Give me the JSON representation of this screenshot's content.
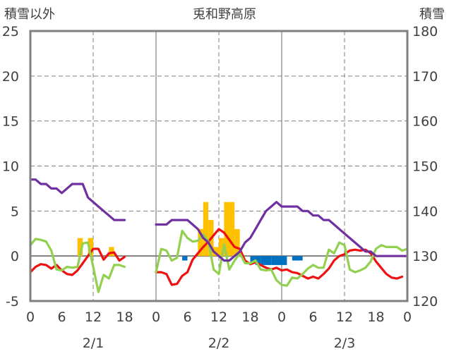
{
  "chart_data": {
    "type": "line",
    "title": "兎和野高原",
    "y_left_label": "積雪以外",
    "y_right_label": "積雪",
    "y_left_range": [
      -5,
      25
    ],
    "y_right_range": [
      120,
      180
    ],
    "y_left_ticks": [
      "-5",
      "0",
      "5",
      "10",
      "15",
      "20",
      "25"
    ],
    "y_right_ticks": [
      "120",
      "130",
      "140",
      "150",
      "160",
      "170",
      "180"
    ],
    "x_range_hours": [
      0,
      72
    ],
    "x_tick_labels": [
      "0",
      "6",
      "12",
      "18",
      "0",
      "6",
      "12",
      "18",
      "0",
      "6",
      "12",
      "18",
      "0"
    ],
    "date_labels": [
      "2/1",
      "2/2",
      "2/3"
    ],
    "grid": true,
    "colors": {
      "temperature": "#ee1111",
      "dewpoint": "#92d050",
      "snow_depth": "#7030a0",
      "precip_orange": "#ffc000",
      "precip_blue": "#0070c0",
      "grid": "#808080",
      "frame": "#808080"
    },
    "series": [
      {
        "color_key": "temperature",
        "axis": "left",
        "points": [
          [
            0,
            -1.8
          ],
          [
            1,
            -1.2
          ],
          [
            2,
            -0.9
          ],
          [
            3,
            -1.0
          ],
          [
            4,
            -1.4
          ],
          [
            5,
            -1.0
          ],
          [
            6,
            -1.6
          ],
          [
            7,
            -2.0
          ],
          [
            8,
            -2.1
          ],
          [
            9,
            -1.6
          ],
          [
            10,
            -0.8
          ],
          [
            11,
            0.0
          ],
          [
            12,
            0.8
          ],
          [
            13,
            0.8
          ],
          [
            14,
            -0.4
          ],
          [
            15,
            0.3
          ],
          [
            16,
            0.4
          ],
          [
            17,
            -0.5
          ],
          [
            18,
            -0.1
          ],
          [
            24,
            -1.8
          ],
          [
            25,
            -1.8
          ],
          [
            26,
            -2.0
          ],
          [
            27,
            -3.2
          ],
          [
            28,
            -3.1
          ],
          [
            29,
            -2.2
          ],
          [
            30,
            -1.8
          ],
          [
            31,
            -0.4
          ],
          [
            32,
            0.3
          ],
          [
            33,
            1.0
          ],
          [
            34,
            1.6
          ],
          [
            35,
            2.3
          ],
          [
            36,
            3.0
          ],
          [
            37,
            2.6
          ],
          [
            38,
            1.8
          ],
          [
            39,
            1.0
          ],
          [
            40,
            0.8
          ],
          [
            41,
            -0.5
          ],
          [
            42,
            -0.9
          ],
          [
            43,
            -0.7
          ],
          [
            44,
            -1.0
          ],
          [
            45,
            -1.3
          ],
          [
            46,
            -1.5
          ],
          [
            47,
            -1.3
          ],
          [
            48,
            -1.6
          ],
          [
            49,
            -1.5
          ],
          [
            50,
            -1.8
          ],
          [
            51,
            -1.9
          ],
          [
            52,
            -2.2
          ],
          [
            53,
            -2.5
          ],
          [
            54,
            -2.3
          ],
          [
            55,
            -2.5
          ],
          [
            56,
            -2.0
          ],
          [
            57,
            -1.4
          ],
          [
            58,
            -0.5
          ],
          [
            59,
            0.0
          ],
          [
            60,
            0.2
          ],
          [
            61,
            0.6
          ],
          [
            62,
            0.7
          ],
          [
            63,
            0.6
          ],
          [
            64,
            0.7
          ],
          [
            65,
            0.3
          ],
          [
            66,
            -0.6
          ],
          [
            67,
            -1.3
          ],
          [
            68,
            -2.0
          ],
          [
            69,
            -2.4
          ],
          [
            70,
            -2.5
          ],
          [
            71,
            -2.3
          ]
        ]
      },
      {
        "color_key": "dewpoint",
        "axis": "left",
        "points": [
          [
            0,
            1.2
          ],
          [
            1,
            1.9
          ],
          [
            2,
            1.8
          ],
          [
            3,
            1.6
          ],
          [
            4,
            0.6
          ],
          [
            5,
            -1.5
          ],
          [
            6,
            -1.6
          ],
          [
            7,
            -1.2
          ],
          [
            8,
            -1.3
          ],
          [
            9,
            -1.2
          ],
          [
            10,
            1.4
          ],
          [
            11,
            1.5
          ],
          [
            12,
            -1.2
          ],
          [
            13,
            -4.0
          ],
          [
            14,
            -2.1
          ],
          [
            15,
            -2.5
          ],
          [
            16,
            -1.0
          ],
          [
            17,
            -1.0
          ],
          [
            18,
            -1.2
          ],
          [
            24,
            -1.8
          ],
          [
            25,
            0.8
          ],
          [
            26,
            0.6
          ],
          [
            27,
            -0.5
          ],
          [
            28,
            -0.2
          ],
          [
            29,
            2.8
          ],
          [
            30,
            2.0
          ],
          [
            31,
            1.6
          ],
          [
            32,
            1.7
          ],
          [
            33,
            2.4
          ],
          [
            34,
            1.6
          ],
          [
            35,
            -1.5
          ],
          [
            36,
            -2.0
          ],
          [
            37,
            1.3
          ],
          [
            38,
            -1.5
          ],
          [
            39,
            -0.5
          ],
          [
            40,
            0.3
          ],
          [
            41,
            -0.8
          ],
          [
            42,
            -0.8
          ],
          [
            43,
            -0.5
          ],
          [
            44,
            -1.5
          ],
          [
            45,
            -1.6
          ],
          [
            46,
            -1.5
          ],
          [
            47,
            -2.7
          ],
          [
            48,
            -3.2
          ],
          [
            49,
            -3.3
          ],
          [
            50,
            -2.4
          ],
          [
            51,
            -2.5
          ],
          [
            52,
            -2.0
          ],
          [
            53,
            -1.4
          ],
          [
            54,
            -1.0
          ],
          [
            55,
            -1.3
          ],
          [
            56,
            -1.3
          ],
          [
            57,
            0.7
          ],
          [
            58,
            0.3
          ],
          [
            59,
            1.5
          ],
          [
            60,
            1.2
          ],
          [
            61,
            -1.5
          ],
          [
            62,
            -1.8
          ],
          [
            63,
            -1.6
          ],
          [
            64,
            -1.3
          ],
          [
            65,
            -0.6
          ],
          [
            66,
            0.8
          ],
          [
            67,
            1.2
          ],
          [
            68,
            1.0
          ],
          [
            69,
            1.0
          ],
          [
            70,
            1.0
          ],
          [
            71,
            0.6
          ],
          [
            72,
            0.8
          ]
        ]
      },
      {
        "color_key": "snow_depth",
        "axis": "right",
        "points": [
          [
            0,
            147
          ],
          [
            1,
            147
          ],
          [
            2,
            146
          ],
          [
            3,
            146
          ],
          [
            4,
            145
          ],
          [
            5,
            145
          ],
          [
            6,
            144
          ],
          [
            7,
            145
          ],
          [
            8,
            146
          ],
          [
            9,
            146
          ],
          [
            10,
            146
          ],
          [
            11,
            143
          ],
          [
            12,
            142
          ],
          [
            13,
            141
          ],
          [
            14,
            140
          ],
          [
            15,
            139
          ],
          [
            16,
            138
          ],
          [
            17,
            138
          ],
          [
            18,
            138
          ],
          [
            24,
            137
          ],
          [
            25,
            137
          ],
          [
            26,
            137
          ],
          [
            27,
            138
          ],
          [
            28,
            138
          ],
          [
            29,
            138
          ],
          [
            30,
            138
          ],
          [
            31,
            137
          ],
          [
            32,
            136
          ],
          [
            33,
            134
          ],
          [
            34,
            133
          ],
          [
            35,
            131
          ],
          [
            36,
            130
          ],
          [
            37,
            129
          ],
          [
            38,
            129
          ],
          [
            39,
            130
          ],
          [
            40,
            131
          ],
          [
            41,
            133
          ],
          [
            42,
            134
          ],
          [
            43,
            136
          ],
          [
            44,
            138
          ],
          [
            45,
            140
          ],
          [
            46,
            141
          ],
          [
            47,
            142
          ],
          [
            48,
            141
          ],
          [
            49,
            141
          ],
          [
            50,
            141
          ],
          [
            51,
            141
          ],
          [
            52,
            140
          ],
          [
            53,
            140
          ],
          [
            54,
            139
          ],
          [
            55,
            139
          ],
          [
            56,
            138
          ],
          [
            57,
            138
          ],
          [
            58,
            137
          ],
          [
            59,
            136
          ],
          [
            60,
            135
          ],
          [
            61,
            134
          ],
          [
            62,
            133
          ],
          [
            63,
            132
          ],
          [
            64,
            131
          ],
          [
            65,
            131
          ],
          [
            66,
            130
          ],
          [
            67,
            130
          ],
          [
            68,
            130
          ],
          [
            69,
            130
          ],
          [
            70,
            130
          ],
          [
            71,
            130
          ],
          [
            72,
            130
          ]
        ]
      }
    ],
    "bars": [
      {
        "color_key": "precip_orange",
        "start": 9,
        "end": 10,
        "value": 2.0
      },
      {
        "color_key": "precip_orange",
        "start": 11,
        "end": 12,
        "value": 2.0
      },
      {
        "color_key": "precip_orange",
        "start": 15,
        "end": 16,
        "value": 1.0
      },
      {
        "color_key": "precip_orange",
        "start": 32,
        "end": 33,
        "value": 3.0
      },
      {
        "color_key": "precip_orange",
        "start": 33,
        "end": 34,
        "value": 6.0
      },
      {
        "color_key": "precip_orange",
        "start": 34,
        "end": 35,
        "value": 4.0
      },
      {
        "color_key": "precip_orange",
        "start": 35,
        "end": 36,
        "value": 1.0
      },
      {
        "color_key": "precip_orange",
        "start": 36,
        "end": 37,
        "value": 2.0
      },
      {
        "color_key": "precip_orange",
        "start": 37,
        "end": 39,
        "value": 6.0
      },
      {
        "color_key": "precip_orange",
        "start": 39,
        "end": 40,
        "value": 3.0
      },
      {
        "color_key": "precip_blue",
        "start": 29,
        "end": 30,
        "value": -0.5
      },
      {
        "color_key": "precip_blue",
        "start": 42,
        "end": 43,
        "value": -0.7
      },
      {
        "color_key": "precip_blue",
        "start": 43,
        "end": 44,
        "value": -1.0
      },
      {
        "color_key": "precip_blue",
        "start": 44,
        "end": 46,
        "value": -1.0
      },
      {
        "color_key": "precip_blue",
        "start": 46,
        "end": 48,
        "value": -1.0
      },
      {
        "color_key": "precip_blue",
        "start": 48,
        "end": 49,
        "value": -1.0
      },
      {
        "color_key": "precip_blue",
        "start": 50,
        "end": 52,
        "value": -0.5
      }
    ]
  }
}
